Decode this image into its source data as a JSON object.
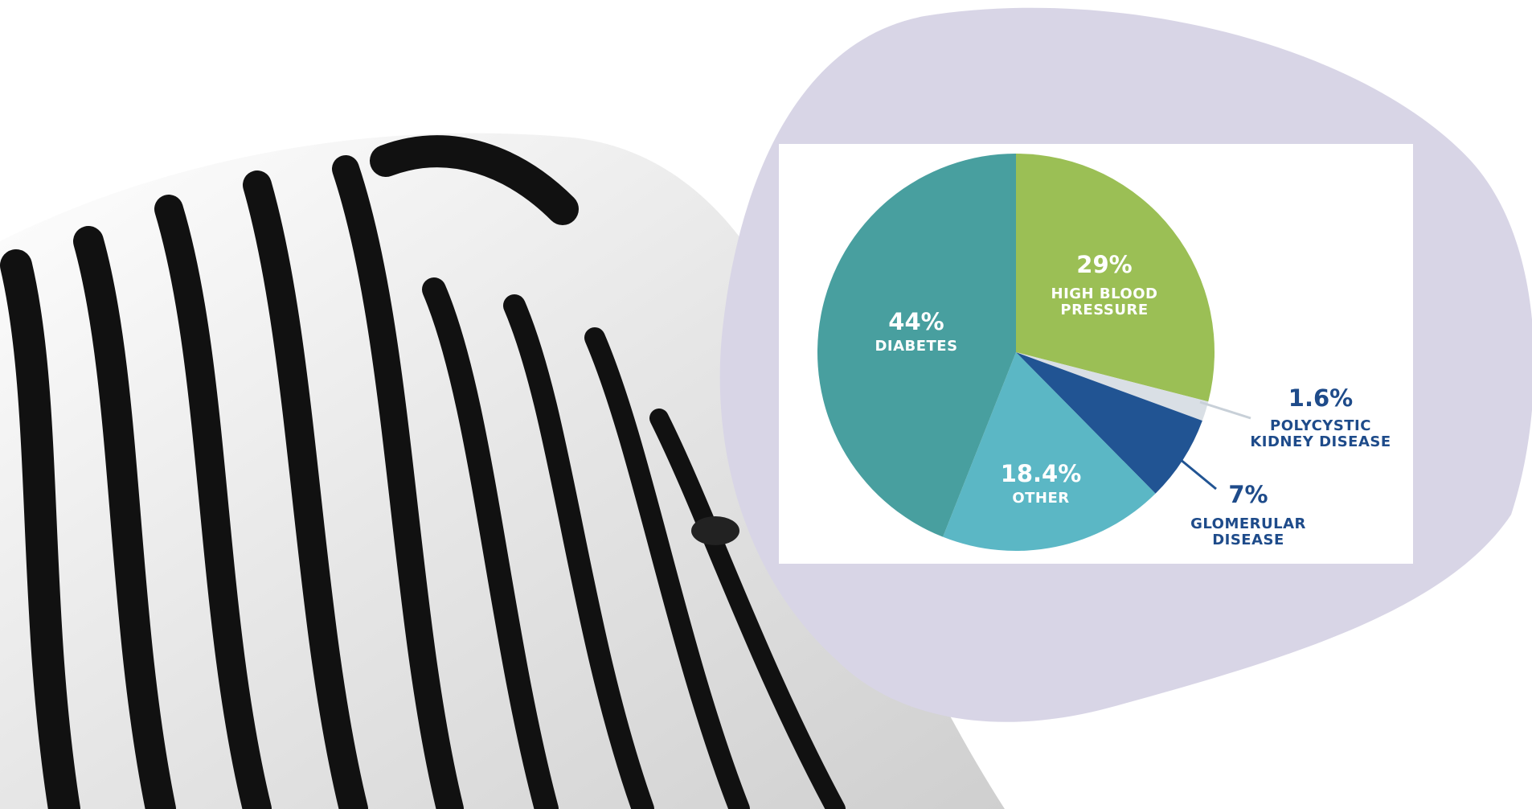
{
  "chart_data": {
    "type": "pie",
    "categories": [
      "HIGH BLOOD PRESSURE",
      "POLYCYSTIC KIDNEY DISEASE",
      "GLOMERULAR DISEASE",
      "OTHER",
      "DIABETES"
    ],
    "values": [
      29,
      1.6,
      7,
      18.4,
      44
    ],
    "value_labels": [
      "29%",
      "1.6%",
      "7%",
      "18.4%",
      "44%"
    ],
    "colors": [
      "#9bbf55",
      "#d9dfe5",
      "#215493",
      "#5bb7c5",
      "#489f9f"
    ]
  }
}
